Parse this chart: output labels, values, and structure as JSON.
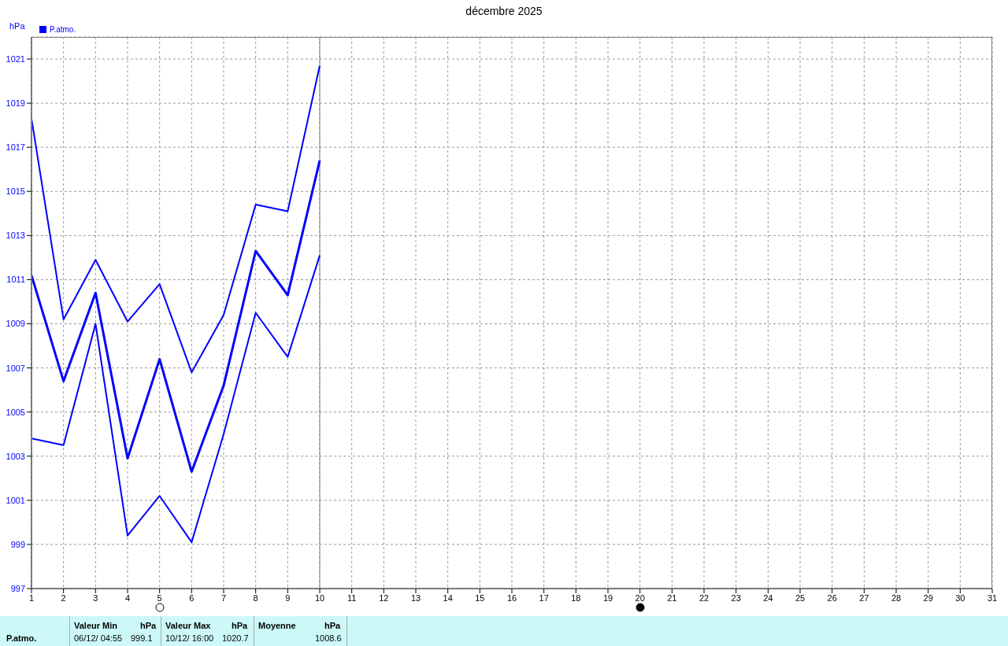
{
  "chart_data": {
    "type": "line",
    "title": "décembre 2025",
    "ylabel": "hPa",
    "x": [
      1,
      2,
      3,
      4,
      5,
      6,
      7,
      8,
      9,
      10
    ],
    "series": [
      {
        "color": "#0000ff",
        "values": [
          1018.3,
          1009.2,
          1011.9,
          1009.1,
          1010.8,
          1006.8,
          1009.4,
          1014.4,
          1014.1,
          1020.7
        ]
      },
      {
        "name": "P.atmo.",
        "color": "#0000ff",
        "values": [
          1011.2,
          1006.4,
          1010.4,
          1002.9,
          1007.4,
          1002.3,
          1006.2,
          1012.3,
          1010.3,
          1016.4
        ]
      },
      {
        "color": "#0000ff",
        "values": [
          1003.8,
          1003.5,
          1009.0,
          999.4,
          1001.2,
          999.1,
          1004.0,
          1009.5,
          1007.5,
          1012.1
        ]
      }
    ],
    "xlim": [
      1,
      31
    ],
    "xticks": [
      1,
      2,
      3,
      4,
      5,
      6,
      7,
      8,
      9,
      10,
      11,
      12,
      13,
      14,
      15,
      16,
      17,
      18,
      19,
      20,
      21,
      22,
      23,
      24,
      25,
      26,
      27,
      28,
      29,
      30,
      31
    ],
    "ylim": [
      997,
      1022
    ],
    "yticks": [
      997,
      999,
      1001,
      1003,
      1005,
      1007,
      1009,
      1011,
      1013,
      1015,
      1017,
      1019,
      1021
    ],
    "ref_lines": [
      {
        "axis": "x",
        "value": 10,
        "color": "#808080"
      }
    ],
    "grid": true,
    "legend": "top left",
    "marker": "none",
    "annotations": [
      "P.atmo.",
      "Valeur Min",
      "hPa",
      "06/12/  04:55",
      "999.1",
      "Valeur Max",
      "hPa",
      "10/12/  16:00",
      "1020.7",
      "Moyenne",
      "hPa",
      "1008.6"
    ]
  }
}
